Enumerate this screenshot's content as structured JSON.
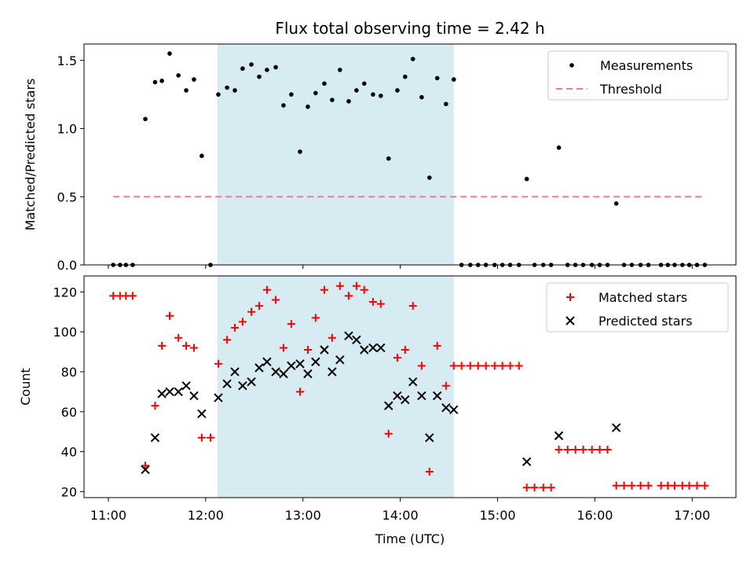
{
  "chart_data": [
    {
      "type": "scatter",
      "title": "Flux total observing time = 2.42 h",
      "xlabel": "",
      "ylabel": "Matched/Predicted stars",
      "ylim": [
        0,
        1.62
      ],
      "yticks": [
        0.0,
        0.5,
        1.0,
        1.5
      ],
      "ytick_labels": [
        "0.0",
        "0.5",
        "1.0",
        "1.5"
      ],
      "x_unit": "hours UTC",
      "xlim": [
        10.75,
        17.45
      ],
      "xticks": [
        11,
        12,
        13,
        14,
        15,
        16,
        17
      ],
      "shaded_region": {
        "x_start": 12.12,
        "x_end": 14.55,
        "color": "#add8e6"
      },
      "legend": {
        "position": "upper right",
        "entries": [
          "Measurements",
          "Threshold"
        ]
      },
      "series": [
        {
          "name": "Measurements",
          "marker": "dot",
          "color": "#000000",
          "points": [
            [
              11.05,
              0.0
            ],
            [
              11.12,
              0.0
            ],
            [
              11.18,
              0.0
            ],
            [
              11.25,
              0.0
            ],
            [
              11.38,
              1.07
            ],
            [
              11.48,
              1.34
            ],
            [
              11.55,
              1.35
            ],
            [
              11.63,
              1.55
            ],
            [
              11.72,
              1.39
            ],
            [
              11.8,
              1.28
            ],
            [
              11.88,
              1.36
            ],
            [
              11.96,
              0.8
            ],
            [
              12.05,
              0.0
            ],
            [
              12.13,
              1.25
            ],
            [
              12.22,
              1.3
            ],
            [
              12.3,
              1.28
            ],
            [
              12.38,
              1.44
            ],
            [
              12.47,
              1.47
            ],
            [
              12.55,
              1.38
            ],
            [
              12.63,
              1.43
            ],
            [
              12.72,
              1.45
            ],
            [
              12.8,
              1.17
            ],
            [
              12.88,
              1.25
            ],
            [
              12.97,
              0.83
            ],
            [
              13.05,
              1.16
            ],
            [
              13.13,
              1.26
            ],
            [
              13.22,
              1.33
            ],
            [
              13.3,
              1.21
            ],
            [
              13.38,
              1.43
            ],
            [
              13.47,
              1.2
            ],
            [
              13.55,
              1.28
            ],
            [
              13.63,
              1.33
            ],
            [
              13.72,
              1.25
            ],
            [
              13.8,
              1.24
            ],
            [
              13.88,
              0.78
            ],
            [
              13.97,
              1.28
            ],
            [
              14.05,
              1.38
            ],
            [
              14.13,
              1.51
            ],
            [
              14.22,
              1.23
            ],
            [
              14.3,
              0.64
            ],
            [
              14.38,
              1.37
            ],
            [
              14.47,
              1.18
            ],
            [
              14.55,
              1.36
            ],
            [
              14.63,
              0.0
            ],
            [
              14.72,
              0.0
            ],
            [
              14.8,
              0.0
            ],
            [
              14.88,
              0.0
            ],
            [
              14.97,
              0.0
            ],
            [
              15.05,
              0.0
            ],
            [
              15.13,
              0.0
            ],
            [
              15.22,
              0.0
            ],
            [
              15.3,
              0.63
            ],
            [
              15.38,
              0.0
            ],
            [
              15.47,
              0.0
            ],
            [
              15.55,
              0.0
            ],
            [
              15.63,
              0.86
            ],
            [
              15.72,
              0.0
            ],
            [
              15.8,
              0.0
            ],
            [
              15.88,
              0.0
            ],
            [
              15.97,
              0.0
            ],
            [
              16.05,
              0.0
            ],
            [
              16.13,
              0.0
            ],
            [
              16.22,
              0.45
            ],
            [
              16.3,
              0.0
            ],
            [
              16.38,
              0.0
            ],
            [
              16.47,
              0.0
            ],
            [
              16.55,
              0.0
            ],
            [
              16.68,
              0.0
            ],
            [
              16.75,
              0.0
            ],
            [
              16.82,
              0.0
            ],
            [
              16.9,
              0.0
            ],
            [
              16.97,
              0.0
            ],
            [
              17.05,
              0.0
            ],
            [
              17.13,
              0.0
            ]
          ]
        },
        {
          "name": "Threshold",
          "style": "dashed",
          "color": "#f08080",
          "points": [
            [
              11.05,
              0.5
            ],
            [
              17.13,
              0.5
            ]
          ]
        }
      ]
    },
    {
      "type": "scatter",
      "title": "",
      "xlabel": "Time (UTC)",
      "ylabel": "Count",
      "ylim": [
        17,
        128
      ],
      "yticks": [
        20,
        40,
        60,
        80,
        100,
        120
      ],
      "ytick_labels": [
        "20",
        "40",
        "60",
        "80",
        "100",
        "120"
      ],
      "x_unit": "hours UTC",
      "xlim": [
        10.75,
        17.45
      ],
      "xticks": [
        11,
        12,
        13,
        14,
        15,
        16,
        17
      ],
      "xtick_labels": [
        "11:00",
        "12:00",
        "13:00",
        "14:00",
        "15:00",
        "16:00",
        "17:00"
      ],
      "shaded_region": {
        "x_start": 12.12,
        "x_end": 14.55,
        "color": "#add8e6"
      },
      "legend": {
        "position": "upper right",
        "entries": [
          "Matched stars",
          "Predicted stars"
        ]
      },
      "series": [
        {
          "name": "Matched stars",
          "marker": "plus",
          "color": "#ff0000",
          "points": [
            [
              11.05,
              118
            ],
            [
              11.12,
              118
            ],
            [
              11.18,
              118
            ],
            [
              11.25,
              118
            ],
            [
              11.38,
              33
            ],
            [
              11.48,
              63
            ],
            [
              11.55,
              93
            ],
            [
              11.63,
              108
            ],
            [
              11.72,
              97
            ],
            [
              11.8,
              93
            ],
            [
              11.88,
              92
            ],
            [
              11.96,
              47
            ],
            [
              12.05,
              47
            ],
            [
              12.13,
              84
            ],
            [
              12.22,
              96
            ],
            [
              12.3,
              102
            ],
            [
              12.38,
              105
            ],
            [
              12.47,
              110
            ],
            [
              12.55,
              113
            ],
            [
              12.63,
              121
            ],
            [
              12.72,
              116
            ],
            [
              12.8,
              92
            ],
            [
              12.88,
              104
            ],
            [
              12.97,
              70
            ],
            [
              13.05,
              91
            ],
            [
              13.13,
              107
            ],
            [
              13.22,
              121
            ],
            [
              13.3,
              97
            ],
            [
              13.38,
              123
            ],
            [
              13.47,
              118
            ],
            [
              13.55,
              123
            ],
            [
              13.63,
              121
            ],
            [
              13.72,
              115
            ],
            [
              13.8,
              114
            ],
            [
              13.88,
              49
            ],
            [
              13.97,
              87
            ],
            [
              14.05,
              91
            ],
            [
              14.13,
              113
            ],
            [
              14.22,
              83
            ],
            [
              14.3,
              30
            ],
            [
              14.38,
              93
            ],
            [
              14.47,
              73
            ],
            [
              14.55,
              83
            ],
            [
              14.63,
              83
            ],
            [
              14.72,
              83
            ],
            [
              14.8,
              83
            ],
            [
              14.88,
              83
            ],
            [
              14.97,
              83
            ],
            [
              15.05,
              83
            ],
            [
              15.13,
              83
            ],
            [
              15.22,
              83
            ],
            [
              15.3,
              22
            ],
            [
              15.38,
              22
            ],
            [
              15.47,
              22
            ],
            [
              15.55,
              22
            ],
            [
              15.63,
              41
            ],
            [
              15.72,
              41
            ],
            [
              15.8,
              41
            ],
            [
              15.88,
              41
            ],
            [
              15.97,
              41
            ],
            [
              16.05,
              41
            ],
            [
              16.13,
              41
            ],
            [
              16.22,
              23
            ],
            [
              16.3,
              23
            ],
            [
              16.38,
              23
            ],
            [
              16.47,
              23
            ],
            [
              16.55,
              23
            ],
            [
              16.68,
              23
            ],
            [
              16.75,
              23
            ],
            [
              16.82,
              23
            ],
            [
              16.9,
              23
            ],
            [
              16.97,
              23
            ],
            [
              17.05,
              23
            ],
            [
              17.13,
              23
            ]
          ]
        },
        {
          "name": "Predicted stars",
          "marker": "x",
          "color": "#000000",
          "points": [
            [
              11.38,
              31
            ],
            [
              11.48,
              47
            ],
            [
              11.55,
              69
            ],
            [
              11.63,
              70
            ],
            [
              11.72,
              70
            ],
            [
              11.8,
              73
            ],
            [
              11.88,
              68
            ],
            [
              11.96,
              59
            ],
            [
              12.13,
              67
            ],
            [
              12.22,
              74
            ],
            [
              12.3,
              80
            ],
            [
              12.38,
              73
            ],
            [
              12.47,
              75
            ],
            [
              12.55,
              82
            ],
            [
              12.63,
              85
            ],
            [
              12.72,
              80
            ],
            [
              12.8,
              79
            ],
            [
              12.88,
              83
            ],
            [
              12.97,
              84
            ],
            [
              13.05,
              79
            ],
            [
              13.13,
              85
            ],
            [
              13.22,
              91
            ],
            [
              13.3,
              80
            ],
            [
              13.38,
              86
            ],
            [
              13.47,
              98
            ],
            [
              13.55,
              96
            ],
            [
              13.63,
              91
            ],
            [
              13.72,
              92
            ],
            [
              13.8,
              92
            ],
            [
              13.88,
              63
            ],
            [
              13.97,
              68
            ],
            [
              14.05,
              66
            ],
            [
              14.13,
              75
            ],
            [
              14.22,
              68
            ],
            [
              14.3,
              47
            ],
            [
              14.38,
              68
            ],
            [
              14.47,
              62
            ],
            [
              14.55,
              61
            ],
            [
              15.3,
              35
            ],
            [
              15.63,
              48
            ],
            [
              16.22,
              52
            ]
          ]
        }
      ]
    }
  ]
}
